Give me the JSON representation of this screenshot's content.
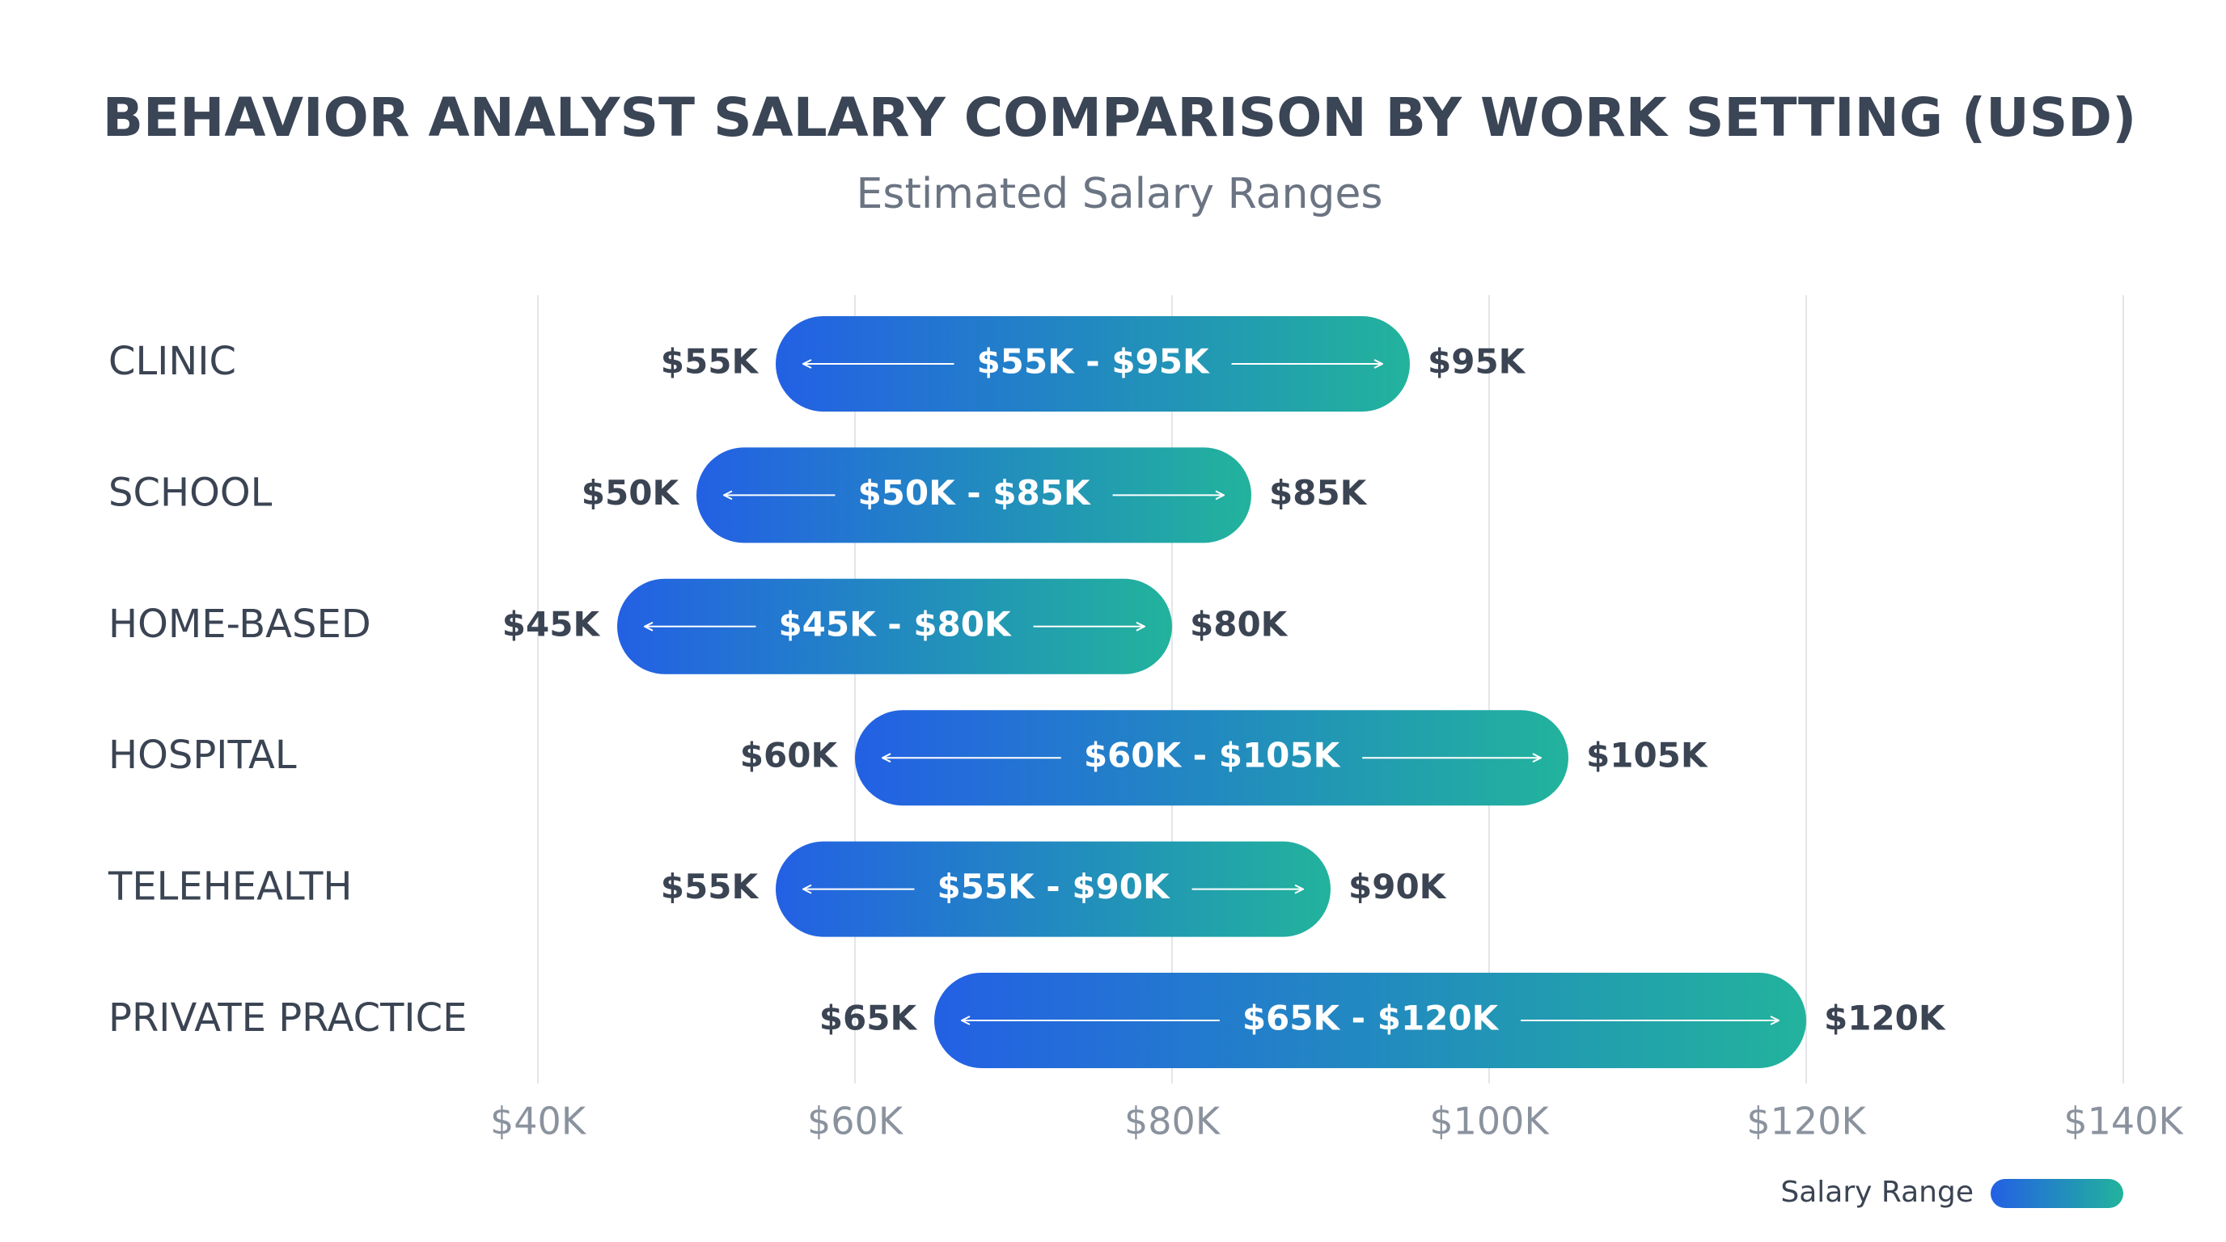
{
  "chart_data": {
    "type": "range",
    "title": "BEHAVIOR ANALYST SALARY COMPARISON BY WORK SETTING (USD)",
    "subtitle": "Estimated Salary Ranges",
    "categories": [
      "CLINIC",
      "SCHOOL",
      "HOME-BASED",
      "HOSPITAL",
      "TELEHEALTH",
      "PRIVATE PRACTICE"
    ],
    "series": [
      {
        "name": "Salary Range",
        "colors": [
          "#2360e4",
          "#22b39c"
        ],
        "low": [
          55000,
          50000,
          45000,
          60000,
          55000,
          65000
        ],
        "high": [
          95000,
          85000,
          80000,
          105000,
          90000,
          120000
        ],
        "low_labels": [
          "$55K",
          "$50K",
          "$45K",
          "$60K",
          "$55K",
          "$65K"
        ],
        "high_labels": [
          "$95K",
          "$85K",
          "$80K",
          "$105K",
          "$90K",
          "$120K"
        ],
        "range_labels": [
          "$55K - $95K",
          "$50K - $85K",
          "$45K - $80K",
          "$60K - $105K",
          "$55K - $90K",
          "$65K - $120K"
        ]
      }
    ],
    "xlim": [
      40000,
      140000
    ],
    "xticks": [
      {
        "value": 40000,
        "label": "$40K"
      },
      {
        "value": 60000,
        "label": "$60K"
      },
      {
        "value": 80000,
        "label": "$80K"
      },
      {
        "value": 100000,
        "label": "$100K"
      },
      {
        "value": 120000,
        "label": "$120K"
      },
      {
        "value": 140000,
        "label": "$140K"
      }
    ],
    "grid": true,
    "legend": "bottom-right"
  }
}
